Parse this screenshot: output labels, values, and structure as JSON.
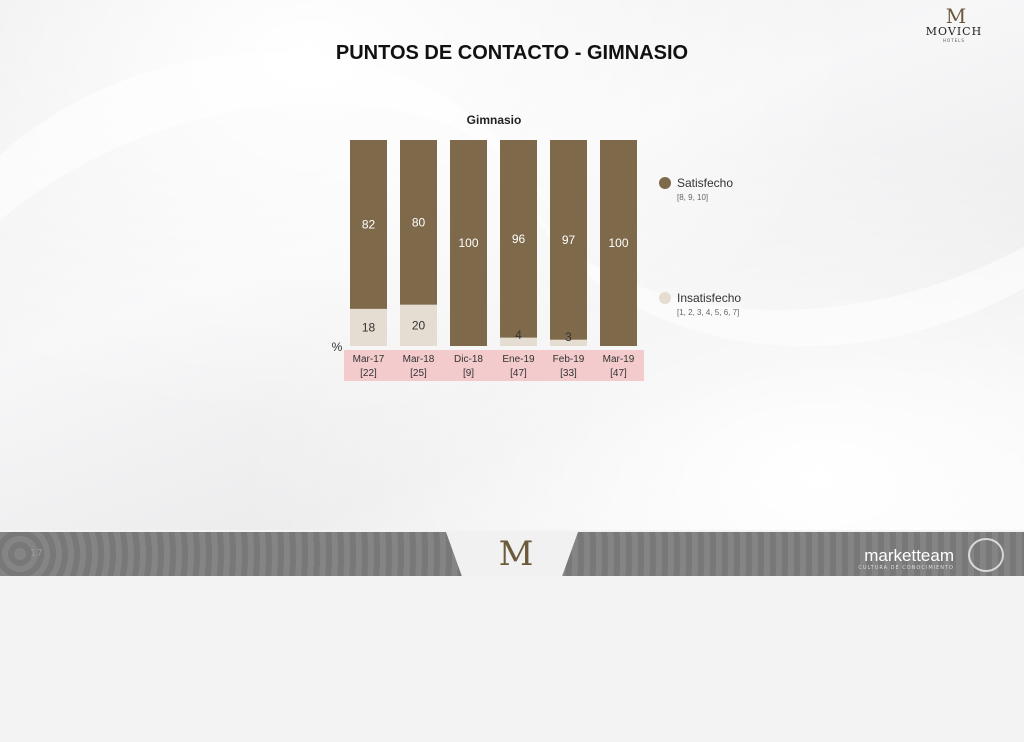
{
  "header": {
    "title": "PUNTOS DE CONTACTO - GIMNASIO",
    "logo_mark": "M",
    "logo_word": "MOVICH",
    "logo_sub": "HOTELS"
  },
  "chart_data": {
    "type": "bar",
    "stacked": true,
    "title": "Gimnasio",
    "unit_label": "%",
    "categories": [
      "Mar-17",
      "Mar-18",
      "Dic-18",
      "Ene-19",
      "Feb-19",
      "Mar-19"
    ],
    "sample_sizes": [
      "[22]",
      "[25]",
      "[9]",
      "[47]",
      "[33]",
      "[47]"
    ],
    "series": [
      {
        "name": "Satisfecho",
        "scale": "[8, 9, 10]",
        "color": "#7e6a4a",
        "values": [
          82,
          80,
          100,
          96,
          97,
          100
        ]
      },
      {
        "name": "Insatisfecho",
        "scale": "[1, 2, 3, 4, 5, 6, 7]",
        "color": "#e6ddd2",
        "values": [
          18,
          20,
          0,
          4,
          3,
          0
        ]
      }
    ],
    "ylim": [
      0,
      100
    ],
    "grid": false,
    "legend_position": "right"
  },
  "footer": {
    "page_number": "17",
    "brand": "marketteam",
    "brand_sub": "CULTURA DE CONOCIMIENTO"
  }
}
